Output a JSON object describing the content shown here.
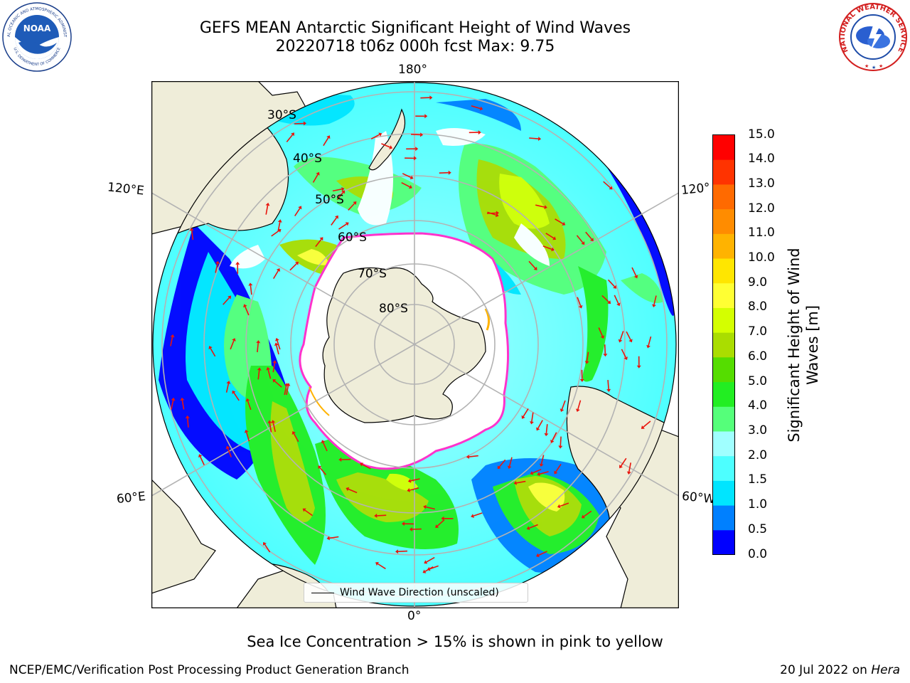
{
  "title_line1": "GEFS MEAN Antarctic Significant Height of Wind Waves",
  "title_line2": "20220718 t06z 000h fcst   Max: 9.75",
  "logos": {
    "noaa_text": "NOAA",
    "noaa_ring": "NATIONAL OCEANIC AND ATMOSPHERIC ADMINISTRATION",
    "noaa_ring_bottom": "U.S. DEPARTMENT OF COMMERCE",
    "nws_ring": "NATIONAL WEATHER SERVICE"
  },
  "map": {
    "projection": "south-polar-stereographic",
    "longitude_labels": {
      "top": "180°",
      "bottom": "0°",
      "upper_left": "120°E",
      "upper_right": "120°",
      "lower_left": "60°E",
      "lower_right": "60°W"
    },
    "latitude_labels": [
      "30°S",
      "40°S",
      "50°S",
      "60°S",
      "70°S",
      "80°S"
    ],
    "legend_label": "Wind Wave Direction (unscaled)",
    "colors": {
      "land": "#efedd9",
      "grid": "#b3b3b3",
      "arrow": "#e8140c",
      "ice_edge": "#ff33cc"
    }
  },
  "colorbar": {
    "label_line1": "Significant Height of Wind",
    "label_line2": "Waves [m]",
    "ticks": [
      "15.0",
      "14.0",
      "13.0",
      "12.0",
      "11.0",
      "10.0",
      "9.0",
      "8.0",
      "7.0",
      "6.0",
      "5.0",
      "4.0",
      "3.0",
      "2.0",
      "1.5",
      "1.0",
      "0.5",
      "0.0"
    ],
    "bounds": [
      0.0,
      0.5,
      1.0,
      1.5,
      2.0,
      3.0,
      4.0,
      5.0,
      6.0,
      7.0,
      8.0,
      9.0,
      10.0,
      11.0,
      12.0,
      13.0,
      14.0,
      15.0
    ],
    "colors": [
      "#0000ff",
      "#0080ff",
      "#00e5ff",
      "#4dffff",
      "#a0ffff",
      "#55ff7a",
      "#22ee22",
      "#55dd00",
      "#aadd00",
      "#d4ff00",
      "#ffff33",
      "#ffe600",
      "#ffb300",
      "#ff8c00",
      "#ff6a00",
      "#ff3300",
      "#ff0000"
    ]
  },
  "sea_ice_note": "Sea Ice Concentration > 15% is shown in pink to yellow",
  "footer_left": "NCEP/EMC/Verification Post Processing Product Generation Branch",
  "footer_right_date": "20 Jul 2022 on",
  "footer_right_machine": "Hera"
}
